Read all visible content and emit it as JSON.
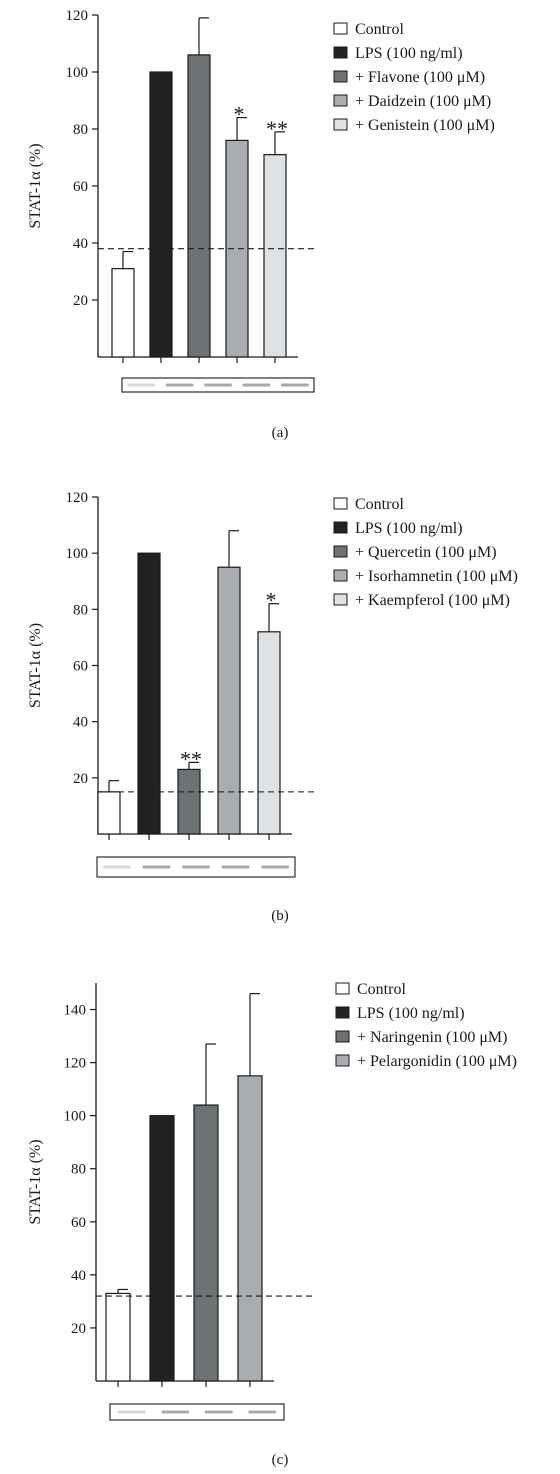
{
  "colors": {
    "control": "#ffffff",
    "black": "#222222",
    "dark_gray": "#6d7275",
    "mid_gray": "#a9adb1",
    "light_gray": "#dfe2e5",
    "axis": "#1a1a1a"
  },
  "chart_data": [
    {
      "type": "bar",
      "panel_label": "(a)",
      "ylabel": "STAT-1α (%)",
      "ylim": [
        0,
        120
      ],
      "yticks": [
        20,
        40,
        60,
        80,
        100,
        120
      ],
      "baseline_dashed": 38,
      "categories": [
        "Control",
        "LPS (100 ng/ml)",
        "+ Flavone (100 μM)",
        "+ Daidzein (100 μM)",
        "+ Genistein (100 μM)"
      ],
      "values": [
        31,
        100,
        106,
        76,
        71
      ],
      "errors": [
        6,
        0,
        13,
        8,
        8
      ],
      "significance": [
        "",
        "",
        "",
        "*",
        "**"
      ],
      "bar_colors": [
        "#ffffff",
        "#222222",
        "#6d7275",
        "#a9adb1",
        "#dfe2e5"
      ],
      "legend": [
        "Control",
        "LPS (100 ng/ml)",
        "+ Flavone (100 μM)",
        "+ Daidzein (100 μM)",
        "+ Genistein (100 μM)"
      ],
      "legend_position": "top-right"
    },
    {
      "type": "bar",
      "panel_label": "(b)",
      "ylabel": "STAT-1α (%)",
      "ylim": [
        0,
        120
      ],
      "yticks": [
        20,
        40,
        60,
        80,
        100,
        120
      ],
      "baseline_dashed": 15,
      "categories": [
        "Control",
        "LPS (100 ng/ml)",
        "+ Quercetin (100 μM)",
        "+ Isorhamnetin (100 μM)",
        "+ Kaempferol (100 μM)"
      ],
      "values": [
        15,
        100,
        23,
        95,
        72
      ],
      "errors": [
        4,
        0,
        2.5,
        13,
        10
      ],
      "significance": [
        "",
        "",
        "**",
        "",
        "*"
      ],
      "bar_colors": [
        "#ffffff",
        "#222222",
        "#6d7275",
        "#a9adb1",
        "#dfe2e5"
      ],
      "legend": [
        "Control",
        "LPS (100 ng/ml)",
        "+ Quercetin (100 μM)",
        "+ Isorhamnetin (100 μM)",
        "+ Kaempferol (100 μM)"
      ],
      "legend_position": "top-right"
    },
    {
      "type": "bar",
      "panel_label": "(c)",
      "ylabel": "STAT-1α (%)",
      "ylim": [
        0,
        150
      ],
      "yticks": [
        20,
        40,
        60,
        80,
        100,
        120,
        140
      ],
      "baseline_dashed": 32,
      "categories": [
        "Control",
        "LPS (100 ng/ml)",
        "+ Naringenin (100 μM)",
        "+ Pelargonidin (100 μM)"
      ],
      "values": [
        33,
        100,
        104,
        115
      ],
      "errors": [
        1.5,
        0,
        23,
        31
      ],
      "significance": [
        "",
        "",
        "",
        ""
      ],
      "bar_colors": [
        "#ffffff",
        "#222222",
        "#6d7275",
        "#a9adb1"
      ],
      "legend": [
        "Control",
        "LPS (100 ng/ml)",
        "+ Naringenin (100 μM)",
        "+ Pelargonidin (100 μM)"
      ],
      "legend_position": "top-right"
    }
  ]
}
